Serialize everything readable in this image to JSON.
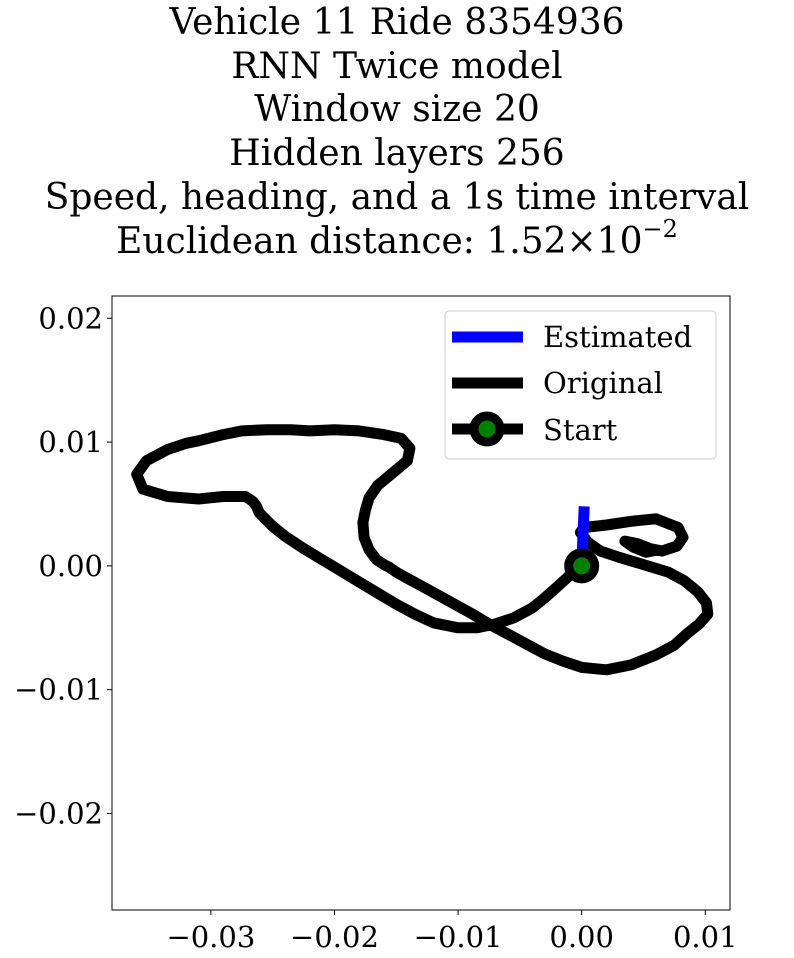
{
  "chart_data": {
    "type": "line",
    "title_lines": [
      "Vehicle 11 Ride 8354936",
      "RNN Twice model",
      "Window size 20",
      "Hidden layers 256",
      "Speed, heading, and a 1s time interval"
    ],
    "title_metric_prefix": "Euclidean distance: 1.52",
    "title_metric_times": "×",
    "title_metric_base": "10",
    "title_metric_exponent": "−2",
    "xlabel": "",
    "ylabel": "",
    "xlim": [
      -0.038,
      0.012
    ],
    "ylim": [
      -0.0278,
      0.0218
    ],
    "x_ticks": [
      -0.03,
      -0.02,
      -0.01,
      0.0,
      0.01
    ],
    "x_tick_labels": [
      "−0.03",
      "−0.02",
      "−0.01",
      "0.00",
      "0.01"
    ],
    "y_ticks": [
      0.02,
      0.01,
      0.0,
      -0.01,
      -0.02
    ],
    "y_tick_labels": [
      "0.02",
      "0.01",
      "0.00",
      "−0.01",
      "−0.02"
    ],
    "grid": false,
    "legend_position": "top-right",
    "series": [
      {
        "name": "Estimated",
        "color": "#0000ff",
        "x": [
          0.0,
          0.0002
        ],
        "y": [
          0.0,
          0.0048
        ]
      },
      {
        "name": "Original",
        "color": "#000000",
        "x": [
          0.0,
          -0.001,
          -0.002,
          -0.003,
          -0.004,
          -0.0055,
          -0.007,
          -0.0085,
          -0.01,
          -0.012,
          -0.0135,
          -0.015,
          -0.0165,
          -0.018,
          -0.0195,
          -0.021,
          -0.0225,
          -0.024,
          -0.025,
          -0.0257,
          -0.0261,
          -0.0263,
          -0.0266,
          -0.0272,
          -0.029,
          -0.031,
          -0.0335,
          -0.0355,
          -0.036,
          -0.0352,
          -0.0335,
          -0.032,
          -0.031,
          -0.029,
          -0.0275,
          -0.0255,
          -0.0235,
          -0.022,
          -0.02,
          -0.018,
          -0.016,
          -0.0146,
          -0.0139,
          -0.0141,
          -0.0153,
          -0.0165,
          -0.0172,
          -0.0175,
          -0.0177,
          -0.0176,
          -0.0172,
          -0.0166,
          -0.016,
          -0.0156,
          -0.015,
          -0.0143,
          -0.013,
          -0.011,
          -0.009,
          -0.0075,
          -0.006,
          -0.0045,
          -0.003,
          -0.0015,
          0.0,
          0.002,
          0.004,
          0.006,
          0.0075,
          0.0085,
          0.0095,
          0.0102,
          0.0101,
          0.0094,
          0.0083,
          0.007,
          0.005,
          0.003,
          0.0015,
          0.0005,
          -0.0001,
          0.0002,
          0.002,
          0.004,
          0.006,
          0.0078,
          0.0082,
          0.0077,
          0.0065,
          0.0055,
          0.0045,
          0.0035,
          0.0042,
          0.0052,
          0.0062
        ],
        "y": [
          0.0,
          -0.0008,
          -0.0017,
          -0.0026,
          -0.0034,
          -0.0042,
          -0.0047,
          -0.005,
          -0.005,
          -0.0046,
          -0.0039,
          -0.0031,
          -0.0022,
          -0.0013,
          -0.0004,
          0.0005,
          0.0014,
          0.0024,
          0.0032,
          0.0039,
          0.0043,
          0.0048,
          0.0052,
          0.0056,
          0.0056,
          0.0054,
          0.0056,
          0.0062,
          0.0074,
          0.0085,
          0.0094,
          0.0099,
          0.0101,
          0.0106,
          0.0109,
          0.011,
          0.011,
          0.0109,
          0.011,
          0.0109,
          0.0106,
          0.0103,
          0.0095,
          0.0085,
          0.0075,
          0.0065,
          0.0055,
          0.0045,
          0.0035,
          0.0023,
          0.0013,
          0.0005,
          0.0001,
          -0.0001,
          -0.0005,
          -0.0009,
          -0.0016,
          -0.0027,
          -0.0038,
          -0.0047,
          -0.0055,
          -0.0063,
          -0.0071,
          -0.0077,
          -0.0082,
          -0.0084,
          -0.008,
          -0.0072,
          -0.0064,
          -0.0055,
          -0.0047,
          -0.0039,
          -0.003,
          -0.0021,
          -0.0012,
          -0.0005,
          0.0001,
          0.0007,
          0.0012,
          0.0019,
          0.0027,
          0.0031,
          0.0033,
          0.0036,
          0.0038,
          0.0031,
          0.0023,
          0.0016,
          0.0012,
          0.0014,
          0.0018,
          0.002,
          0.0015,
          0.0011,
          0.0013
        ]
      },
      {
        "name": "Start",
        "color": "#000000",
        "marker_face_color": "#008000",
        "x": [
          0.0
        ],
        "y": [
          0.0
        ]
      }
    ]
  }
}
